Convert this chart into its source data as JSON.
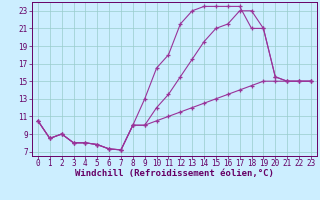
{
  "xlabel": "Windchill (Refroidissement éolien,°C)",
  "bg_color": "#cceeff",
  "grid_color": "#99cccc",
  "line_color": "#993399",
  "xlim": [
    -0.5,
    23.5
  ],
  "ylim": [
    6.5,
    24.0
  ],
  "xticks": [
    0,
    1,
    2,
    3,
    4,
    5,
    6,
    7,
    8,
    9,
    10,
    11,
    12,
    13,
    14,
    15,
    16,
    17,
    18,
    19,
    20,
    21,
    22,
    23
  ],
  "yticks": [
    7,
    9,
    11,
    13,
    15,
    17,
    19,
    21,
    23
  ],
  "line1_x": [
    0,
    1,
    2,
    3,
    4,
    5,
    6,
    7,
    8,
    9,
    10,
    11,
    12,
    13,
    14,
    15,
    16,
    17,
    18,
    19,
    20,
    21,
    22,
    23
  ],
  "line1_y": [
    10.5,
    8.5,
    9.0,
    8.0,
    8.0,
    7.8,
    7.3,
    7.2,
    10.0,
    13.0,
    16.5,
    18.0,
    21.5,
    23.0,
    23.5,
    23.5,
    23.5,
    23.5,
    21.0,
    21.0,
    15.5,
    15.0,
    15.0,
    15.0
  ],
  "line2_x": [
    0,
    1,
    2,
    3,
    4,
    5,
    6,
    7,
    8,
    9,
    10,
    11,
    12,
    13,
    14,
    15,
    16,
    17,
    18,
    19,
    20,
    21,
    22,
    23
  ],
  "line2_y": [
    10.5,
    8.5,
    9.0,
    8.0,
    8.0,
    7.8,
    7.3,
    7.2,
    10.0,
    10.0,
    12.0,
    13.5,
    15.5,
    17.5,
    19.5,
    21.0,
    21.5,
    23.0,
    23.0,
    21.0,
    15.5,
    15.0,
    15.0,
    15.0
  ],
  "line3_x": [
    0,
    1,
    2,
    3,
    4,
    5,
    6,
    7,
    8,
    9,
    10,
    11,
    12,
    13,
    14,
    15,
    16,
    17,
    18,
    19,
    20,
    21,
    22,
    23
  ],
  "line3_y": [
    10.5,
    8.5,
    9.0,
    8.0,
    8.0,
    7.8,
    7.3,
    7.2,
    10.0,
    10.0,
    10.5,
    11.0,
    11.5,
    12.0,
    12.5,
    13.0,
    13.5,
    14.0,
    14.5,
    15.0,
    15.0,
    15.0,
    15.0,
    15.0
  ],
  "font_color": "#660066",
  "tick_fontsize": 5.5,
  "label_fontsize": 6.5
}
